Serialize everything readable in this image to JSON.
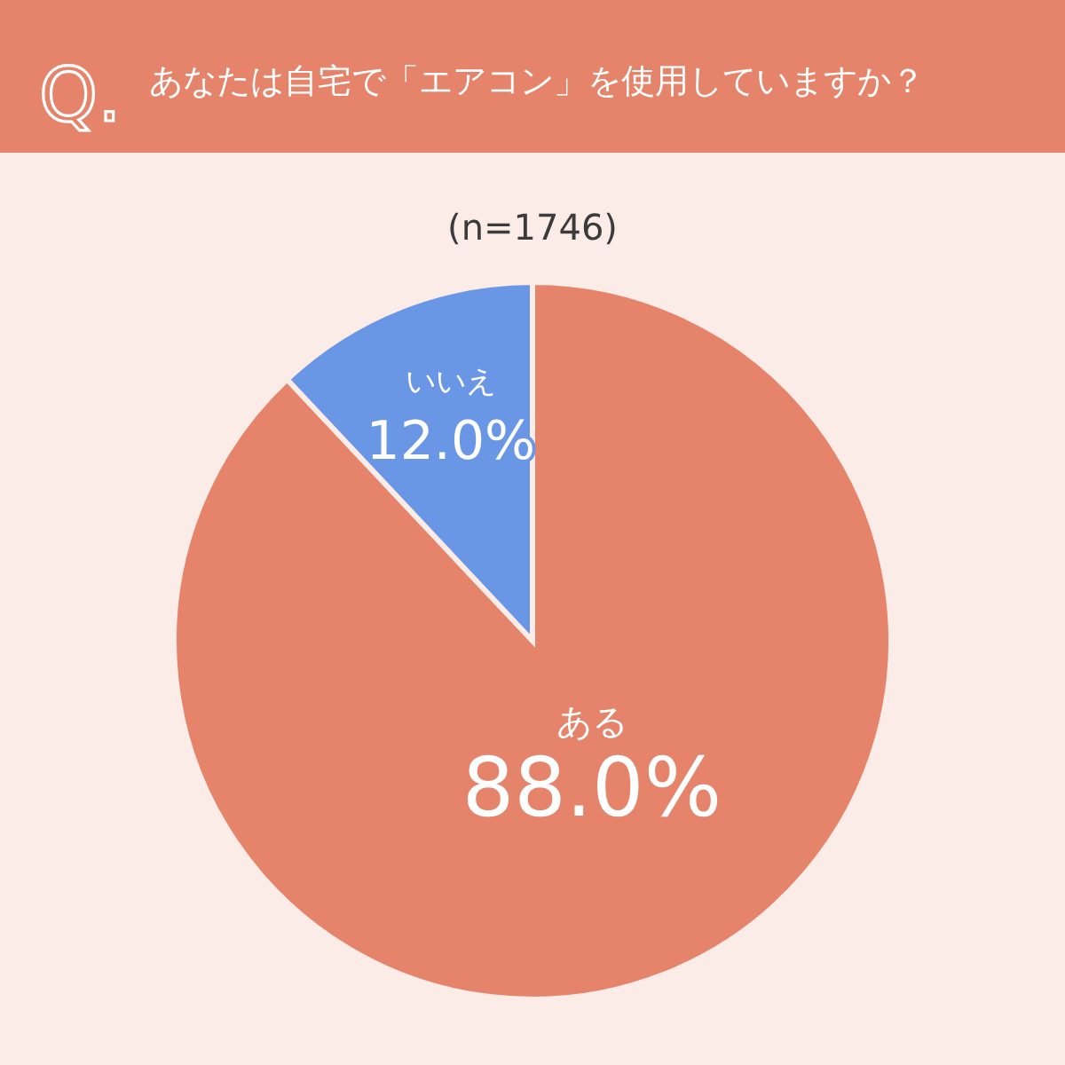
{
  "chart_data": {
    "type": "pie",
    "title": "あなたは自宅で「エアコン」を使用していますか？",
    "subtitle": "(n=1746)",
    "annotations": [
      "Q."
    ],
    "categories": [
      "ある",
      "いいえ"
    ],
    "values": [
      88.0,
      12.0
    ],
    "colors": [
      "#e5846a",
      "#6a96e6"
    ],
    "value_labels": [
      "88.0%",
      "12.0%"
    ],
    "legend": false
  }
}
